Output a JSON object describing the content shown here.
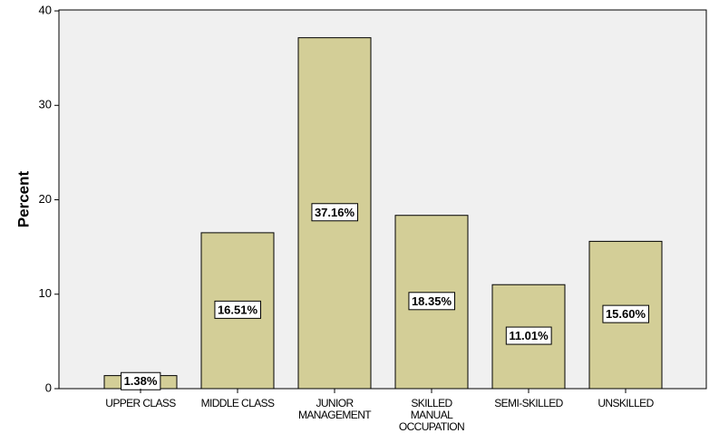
{
  "chart_data": {
    "type": "bar",
    "y_label": "Percent",
    "categories": [
      "UPPER CLASS",
      "MIDDLE CLASS",
      "JUNIOR\nMANAGEMENT",
      "SKILLED\nMANUAL\nOCCUPATION",
      "SEMI-SKILLED",
      "UNSKILLED"
    ],
    "values": [
      1.38,
      16.51,
      37.16,
      18.35,
      11.01,
      15.6
    ],
    "value_labels": [
      "1.38%",
      "16.51%",
      "37.16%",
      "18.35%",
      "11.01%",
      "15.60%"
    ],
    "color": "#d3ce97",
    "ylim": [
      0,
      40.1
    ],
    "yticks": [
      0,
      10,
      20,
      30,
      40
    ],
    "grid": false
  }
}
